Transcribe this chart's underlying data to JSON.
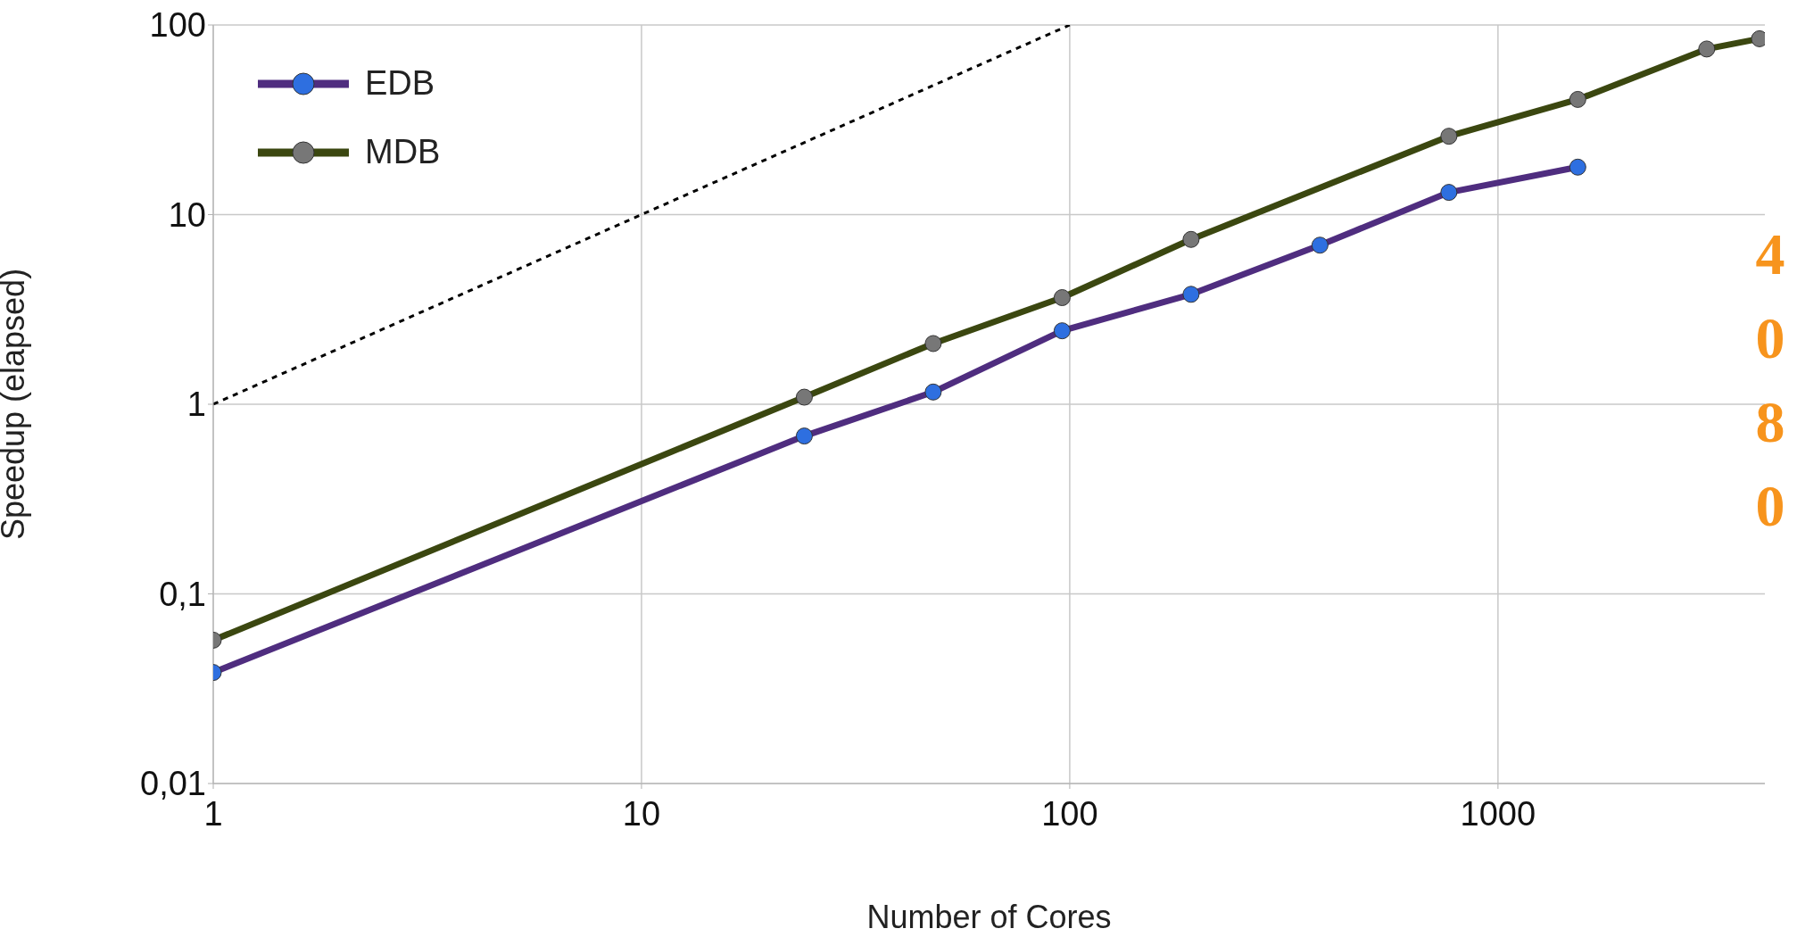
{
  "chart_data": {
    "type": "line",
    "xlabel": "Number of Cores",
    "ylabel": "Speedup (elapsed)",
    "log": "xy",
    "grid": true,
    "legend": "top left",
    "marker": "circle",
    "line_style": "solid",
    "xlim": [
      1,
      4200
    ],
    "xticks": [
      1,
      10,
      100,
      1000
    ],
    "ylim": [
      0.01,
      100
    ],
    "yticks": [
      {
        "value": 0.01,
        "label": "0,01"
      },
      {
        "value": 0.1,
        "label": "0,1"
      },
      1,
      10,
      100
    ],
    "series": [
      {
        "name": "EDB",
        "color": "#4f2d7f",
        "x": [
          1,
          24,
          48,
          96,
          192,
          384,
          768,
          1536
        ],
        "values": [
          0.0385,
          0.68,
          1.16,
          2.44,
          3.8,
          6.9,
          13.1,
          17.8
        ]
      },
      {
        "name": "MDB",
        "color": "#3b4710",
        "x": [
          1,
          24,
          48,
          96,
          192,
          768,
          1536,
          3072,
          4080
        ],
        "values": [
          0.057,
          1.09,
          2.09,
          3.65,
          7.4,
          25.9,
          40.5,
          74.7,
          84.6
        ]
      },
      {
        "color": "#000000",
        "x": [
          1,
          100
        ],
        "values": [
          1,
          100
        ],
        "marker": "none",
        "line_style": "dashed"
      }
    ],
    "annotations": [
      "4080"
    ]
  }
}
